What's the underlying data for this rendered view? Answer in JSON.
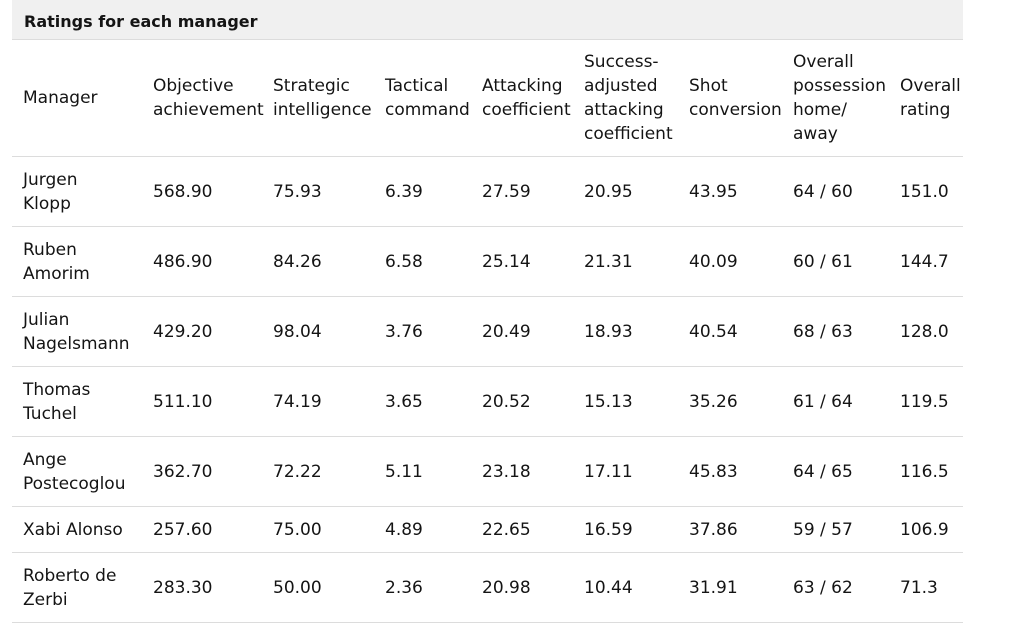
{
  "chart_data": {
    "type": "table",
    "title": "Ratings for each manager",
    "columns": [
      "Manager",
      "Objective\nachievement",
      "Strategic\nintelligence",
      "Tactical\ncommand",
      "Attacking\ncoefficient",
      "Success-\nadjusted\nattacking\ncoefficient",
      "Shot\nconversion",
      "Overall\npossession\nhome/\naway",
      "Overall\nrating"
    ],
    "rows": [
      {
        "manager": "Jurgen\nKlopp",
        "values": [
          "568.90",
          "75.93",
          "6.39",
          "27.59",
          "20.95",
          "43.95",
          "64 / 60",
          "151.0"
        ]
      },
      {
        "manager": "Ruben\nAmorim",
        "values": [
          "486.90",
          "84.26",
          "6.58",
          "25.14",
          "21.31",
          "40.09",
          "60 / 61",
          "144.7"
        ]
      },
      {
        "manager": "Julian\nNagelsmann",
        "values": [
          "429.20",
          "98.04",
          "3.76",
          "20.49",
          "18.93",
          "40.54",
          "68 / 63",
          "128.0"
        ]
      },
      {
        "manager": "Thomas\nTuchel",
        "values": [
          "511.10",
          "74.19",
          "3.65",
          "20.52",
          "15.13",
          "35.26",
          "61 / 64",
          "119.5"
        ]
      },
      {
        "manager": "Ange\nPostecoglou",
        "values": [
          "362.70",
          "72.22",
          "5.11",
          "23.18",
          "17.11",
          "45.83",
          "64 / 65",
          "116.5"
        ]
      },
      {
        "manager": "Xabi Alonso",
        "values": [
          "257.60",
          "75.00",
          "4.89",
          "22.65",
          "16.59",
          "37.86",
          "59 / 57",
          "106.9"
        ]
      },
      {
        "manager": "Roberto de\nZerbi",
        "values": [
          "283.30",
          "50.00",
          "2.36",
          "20.98",
          "10.44",
          "31.91",
          "63 / 62",
          "71.3"
        ]
      }
    ]
  },
  "colors": {
    "caption_bg": "#f0f0f0",
    "rule": "#dcdcdc",
    "text": "#141414"
  }
}
